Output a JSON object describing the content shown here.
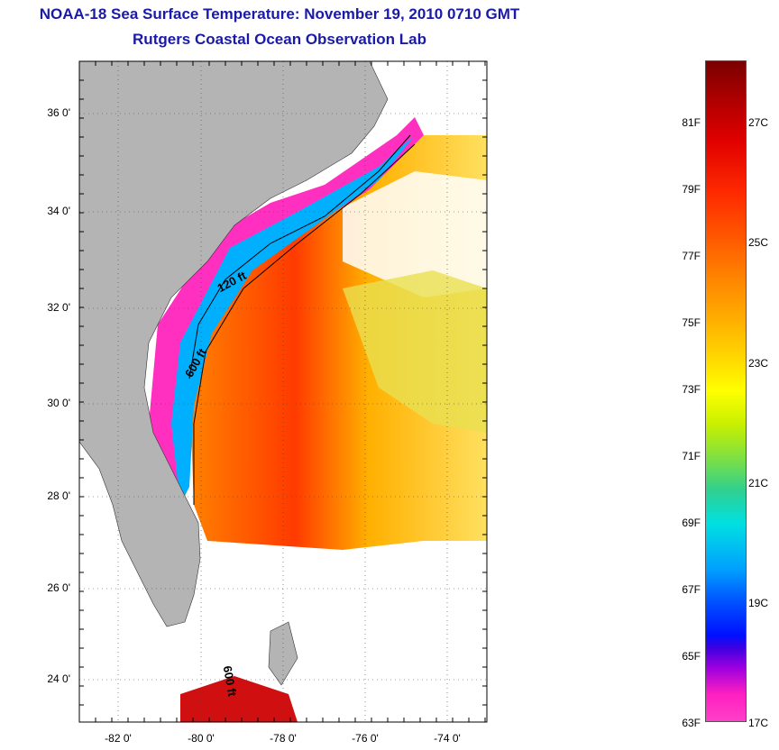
{
  "header": {
    "title": "NOAA-18 Sea Surface Temperature:  November 19, 2010 0710 GMT",
    "subtitle": "Rutgers Coastal Ocean Observation Lab"
  },
  "map": {
    "lat_labels": [
      "36 0'",
      "34 0'",
      "32 0'",
      "30 0'",
      "28 0'",
      "26 0'",
      "24 0'"
    ],
    "lon_labels": [
      "-82 0'",
      "-80 0'",
      "-78 0'",
      "-76 0'",
      "-74 0'"
    ],
    "contour_labels": [
      "120 ft",
      "600 ft",
      "600 ft"
    ],
    "colors": {
      "land": "#b4b4b4",
      "cloud": "#ffffff",
      "warm": "#ff3a00",
      "mid": "#ffe000",
      "cool": "#00a0ff",
      "cold": "#ff30c0"
    }
  },
  "colorbar": {
    "fahrenheit": [
      "81F",
      "79F",
      "77F",
      "75F",
      "73F",
      "71F",
      "69F",
      "67F",
      "65F",
      "63F"
    ],
    "celsius": [
      "27C",
      "25C",
      "23C",
      "21C",
      "19C",
      "17C"
    ]
  }
}
